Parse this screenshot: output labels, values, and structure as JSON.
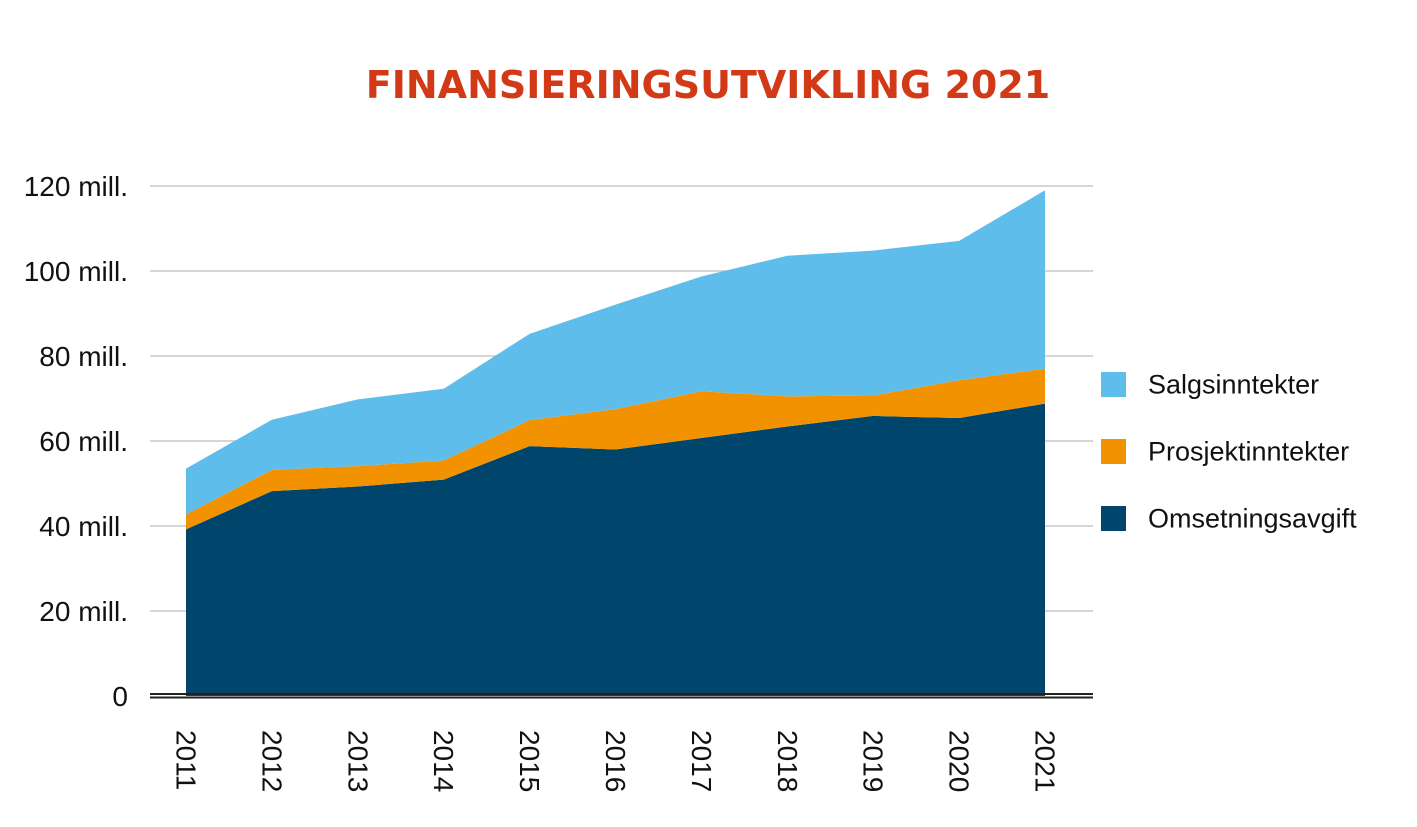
{
  "chart_data": {
    "type": "area",
    "stacked": true,
    "title": "FINANSIERINGSUTVIKLING 2021",
    "xlabel": "",
    "ylabel": "",
    "categories": [
      "2011",
      "2012",
      "2013",
      "2014",
      "2015",
      "2016",
      "2017",
      "2018",
      "2019",
      "2020",
      "2021"
    ],
    "y_ticks": [
      0,
      20,
      40,
      60,
      80,
      100,
      120
    ],
    "y_tick_labels": [
      "0",
      "20 mill.",
      "40 mill.",
      "60 mill.",
      "80 mill.",
      "100 mill.",
      "120 mill."
    ],
    "ylim": [
      0,
      120
    ],
    "grid": true,
    "legend_position": "right",
    "series": [
      {
        "name": "Omsetningsavgift",
        "color": "#00466c",
        "values": [
          39.2,
          48.2,
          49.3,
          50.9,
          58.8,
          58.0,
          60.7,
          63.4,
          65.9,
          65.4,
          68.8
        ]
      },
      {
        "name": "Prosjektinntekter",
        "color": "#f39200",
        "values": [
          3.5,
          5.0,
          4.8,
          4.5,
          6.1,
          9.5,
          11.0,
          7.1,
          4.8,
          8.9,
          8.2
        ]
      },
      {
        "name": "Salgsinntekter",
        "color": "#5fbdeb",
        "values": [
          10.8,
          11.8,
          15.7,
          16.9,
          20.3,
          24.6,
          27.0,
          33.1,
          34.1,
          32.8,
          42.0
        ]
      }
    ],
    "legend_order": [
      "Salgsinntekter",
      "Prosjektinntekter",
      "Omsetningsavgift"
    ]
  }
}
